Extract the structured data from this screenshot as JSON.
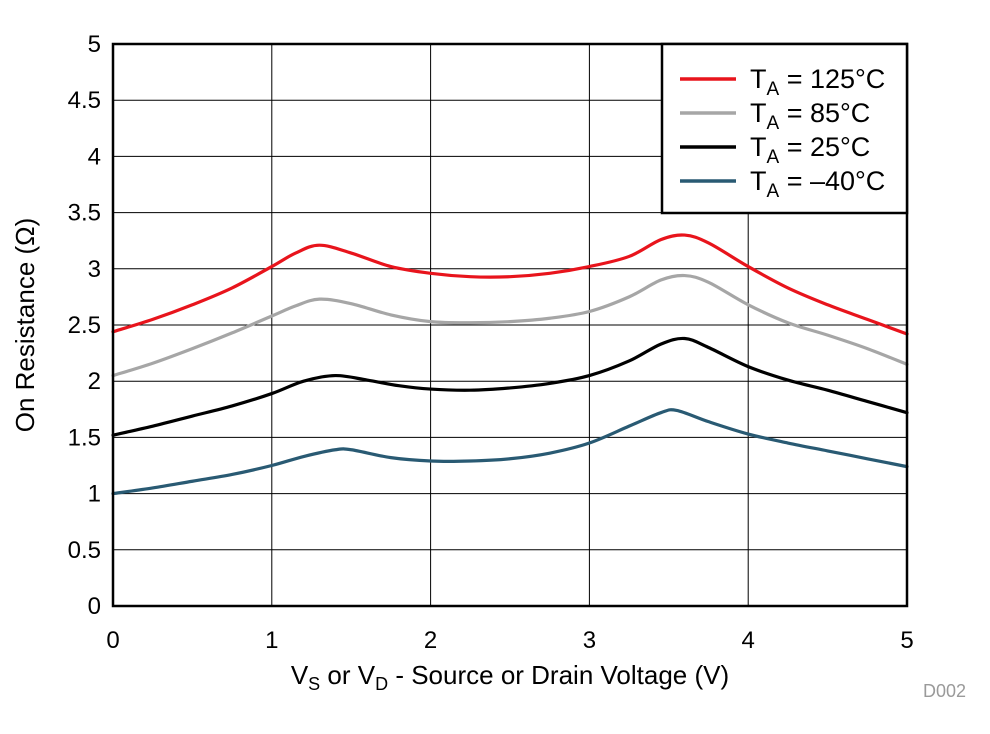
{
  "chart_data": {
    "type": "line",
    "title": "",
    "xlabel": {
      "p1": "V",
      "s1": "S",
      "p2": " or V",
      "s2": "D",
      "p3": " - Source or Drain Voltage (V)"
    },
    "ylabel": "On Resistance (Ω)",
    "xlim": [
      0,
      5
    ],
    "ylim": [
      0,
      5
    ],
    "xticks": [
      "0",
      "1",
      "2",
      "3",
      "4",
      "5"
    ],
    "yticks": [
      "0",
      "0.5",
      "1",
      "1.5",
      "2",
      "2.5",
      "3",
      "3.5",
      "4",
      "4.5",
      "5"
    ],
    "grid": true,
    "legend_position": "top-right",
    "figure_code": "D002",
    "series": [
      {
        "name": "125",
        "legend_prefix": "T",
        "legend_sub": "A",
        "legend_suffix": " = 125°C",
        "color": "#e8141c",
        "x": [
          0,
          0.25,
          0.5,
          0.75,
          1.0,
          1.15,
          1.3,
          1.5,
          1.75,
          2.0,
          2.25,
          2.5,
          2.75,
          3.0,
          3.25,
          3.45,
          3.6,
          3.75,
          4.0,
          4.25,
          4.5,
          4.75,
          5.0
        ],
        "y": [
          2.44,
          2.55,
          2.68,
          2.83,
          3.02,
          3.14,
          3.21,
          3.14,
          3.02,
          2.96,
          2.93,
          2.93,
          2.96,
          3.02,
          3.11,
          3.26,
          3.3,
          3.23,
          3.02,
          2.83,
          2.68,
          2.55,
          2.42
        ]
      },
      {
        "name": "85",
        "legend_prefix": "T",
        "legend_sub": "A",
        "legend_suffix": " = 85°C",
        "color": "#a6a6a6",
        "x": [
          0,
          0.25,
          0.5,
          0.75,
          1.0,
          1.15,
          1.3,
          1.5,
          1.75,
          2.0,
          2.25,
          2.5,
          2.75,
          3.0,
          3.25,
          3.45,
          3.6,
          3.75,
          4.0,
          4.25,
          4.5,
          4.75,
          5.0
        ],
        "y": [
          2.05,
          2.16,
          2.29,
          2.43,
          2.58,
          2.67,
          2.73,
          2.69,
          2.59,
          2.53,
          2.52,
          2.53,
          2.56,
          2.62,
          2.75,
          2.9,
          2.94,
          2.88,
          2.68,
          2.52,
          2.41,
          2.29,
          2.15
        ]
      },
      {
        "name": "25",
        "legend_prefix": "T",
        "legend_sub": "A",
        "legend_suffix": " = 25°C",
        "color": "#000000",
        "x": [
          0,
          0.25,
          0.5,
          0.75,
          1.0,
          1.2,
          1.4,
          1.6,
          1.8,
          2.0,
          2.25,
          2.5,
          2.75,
          3.0,
          3.25,
          3.45,
          3.6,
          3.75,
          4.0,
          4.25,
          4.5,
          4.75,
          5.0
        ],
        "y": [
          1.52,
          1.6,
          1.69,
          1.78,
          1.89,
          2.0,
          2.05,
          2.01,
          1.96,
          1.93,
          1.92,
          1.94,
          1.98,
          2.05,
          2.18,
          2.33,
          2.38,
          2.3,
          2.13,
          2.01,
          1.92,
          1.82,
          1.72
        ]
      },
      {
        "name": "-40",
        "legend_prefix": "T",
        "legend_sub": "A",
        "legend_suffix": " = –40°C",
        "color": "#295a73",
        "x": [
          0,
          0.25,
          0.5,
          0.75,
          1.0,
          1.2,
          1.4,
          1.5,
          1.75,
          2.0,
          2.25,
          2.5,
          2.75,
          3.0,
          3.25,
          3.45,
          3.55,
          3.75,
          4.0,
          4.25,
          4.5,
          4.75,
          5.0
        ],
        "y": [
          1.0,
          1.05,
          1.11,
          1.17,
          1.25,
          1.33,
          1.39,
          1.39,
          1.32,
          1.29,
          1.29,
          1.31,
          1.36,
          1.45,
          1.6,
          1.72,
          1.74,
          1.64,
          1.53,
          1.45,
          1.38,
          1.31,
          1.24
        ]
      }
    ]
  }
}
